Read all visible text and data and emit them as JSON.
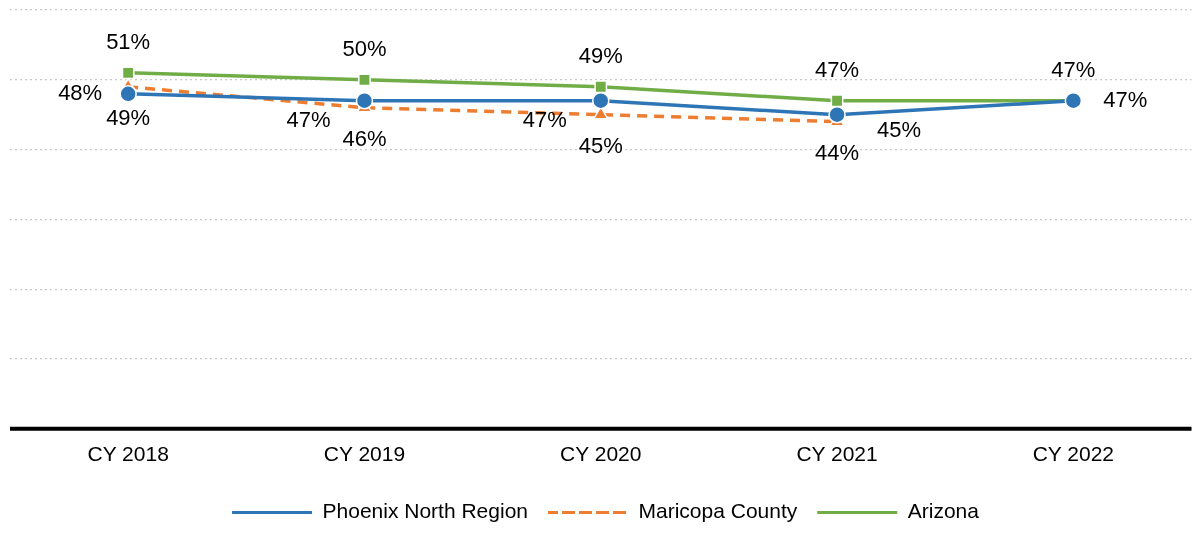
{
  "chart_data": {
    "type": "line",
    "categories": [
      "CY 2018",
      "CY 2019",
      "CY 2020",
      "CY 2021",
      "CY 2022"
    ],
    "series": [
      {
        "name": "Phoenix North Region",
        "color": "#2e75b6",
        "marker": "circle",
        "line_style": "solid",
        "values": [
          48,
          47,
          47,
          45,
          47
        ],
        "value_labels": [
          "48%",
          "47%",
          "47%",
          "45%",
          "47%"
        ]
      },
      {
        "name": "Maricopa County",
        "color": "#ed7d31",
        "marker": "triangle",
        "line_style": "dashed",
        "values": [
          49,
          46,
          45,
          44,
          null
        ],
        "value_labels": [
          "49%",
          "46%",
          "45%",
          "44%",
          null
        ]
      },
      {
        "name": "Arizona",
        "color": "#70ad47",
        "marker": "square",
        "line_style": "solid",
        "values": [
          51,
          50,
          49,
          47,
          47
        ],
        "value_labels": [
          "51%",
          "50%",
          "49%",
          "47%",
          "47%"
        ]
      }
    ],
    "ylim": [
      0,
      60
    ],
    "yticks": [
      0,
      10,
      20,
      30,
      40,
      50,
      60
    ],
    "tick_labels": "x",
    "grid": "y",
    "legend": "bottom"
  }
}
